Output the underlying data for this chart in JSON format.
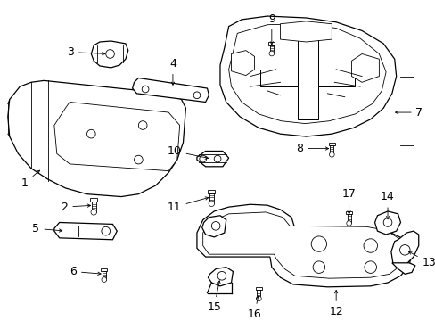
{
  "background_color": "#ffffff",
  "line_color": "#000000",
  "fig_width": 4.89,
  "fig_height": 3.6,
  "dpi": 100,
  "font_size": 9,
  "lw_main": 0.9,
  "lw_inner": 0.6
}
